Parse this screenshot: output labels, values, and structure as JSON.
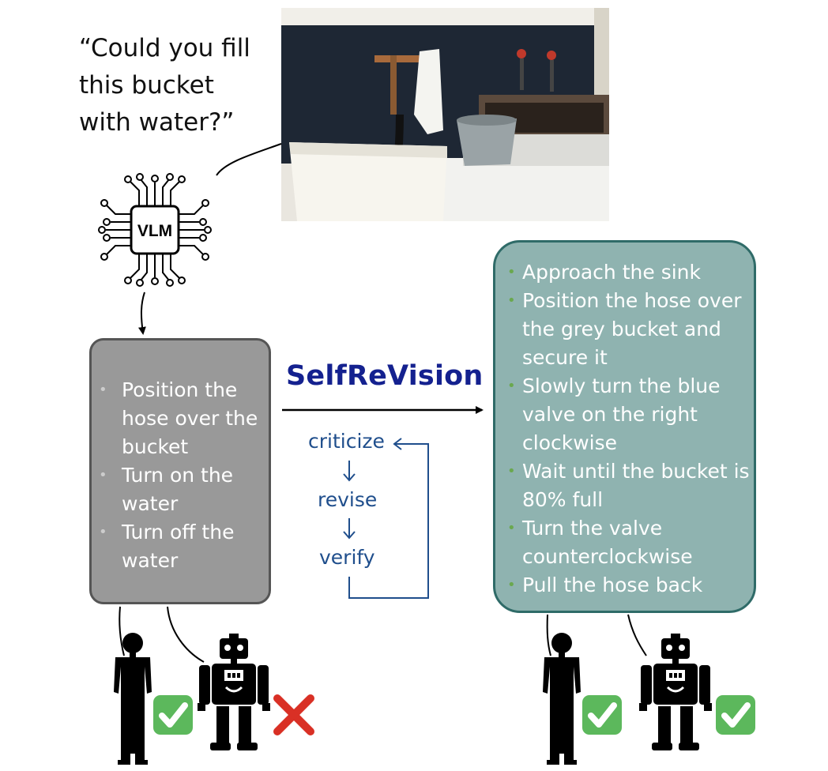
{
  "prompt": {
    "lines": [
      "“Could you fill",
      "this bucket",
      "with water?”"
    ]
  },
  "vlm": {
    "label": "VLM"
  },
  "initial_plan": {
    "items": [
      "Position the hose over the bucket",
      "Turn on the water",
      "Turn off the water"
    ]
  },
  "method": {
    "title": "SelfReVision",
    "steps": [
      "criticize",
      "revise",
      "verify"
    ]
  },
  "revised_plan": {
    "items": [
      "Approach the sink",
      "Position the hose over the grey bucket and secure it",
      "Slowly turn the blue valve on the right clockwise",
      "Wait until the bucket is 80% full",
      "Turn the valve counterclockwise",
      "Pull the hose back"
    ]
  },
  "evaluations": {
    "initial": {
      "human": "check-mark-icon",
      "robot": "cross-mark-icon"
    },
    "revised": {
      "human": "check-mark-icon",
      "robot": "check-mark-icon"
    }
  },
  "colors": {
    "initial_box": "#999999",
    "revised_box": "#8fb3b0",
    "title": "#14218f",
    "steps": "#1f4e8c",
    "check": "#5cb85c",
    "cross": "#d93025"
  }
}
